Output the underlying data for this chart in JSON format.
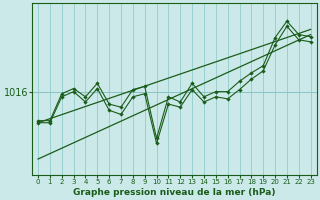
{
  "background_color": "#cce9e9",
  "plot_bg_color": "#cce9e9",
  "line_color": "#1a5c1a",
  "grid_color": "#88c4c4",
  "xlabel": "Graphe pression niveau de la mer (hPa)",
  "ylabel_tick": "1016",
  "x_ticks": [
    0,
    1,
    2,
    3,
    4,
    5,
    6,
    7,
    8,
    9,
    10,
    11,
    12,
    13,
    14,
    15,
    16,
    17,
    18,
    19,
    20,
    21,
    22,
    23
  ],
  "xlim": [
    -0.5,
    23.5
  ],
  "ylim_min": 1008.0,
  "ylim_max": 1024.5,
  "y_ref": 1016,
  "series1": [
    1013.2,
    1013.2,
    1015.8,
    1016.3,
    1015.5,
    1016.8,
    1014.8,
    1014.5,
    1016.2,
    1016.5,
    1011.5,
    1015.5,
    1015.0,
    1016.8,
    1015.5,
    1016.0,
    1016.0,
    1017.0,
    1017.8,
    1018.5,
    1021.2,
    1022.8,
    1021.5,
    1021.3
  ],
  "series2": [
    1013.0,
    1013.0,
    1015.5,
    1016.0,
    1015.0,
    1016.3,
    1014.2,
    1013.8,
    1015.5,
    1015.8,
    1011.0,
    1014.8,
    1014.5,
    1016.2,
    1015.0,
    1015.5,
    1015.3,
    1016.2,
    1017.2,
    1018.0,
    1020.5,
    1022.3,
    1021.0,
    1020.8
  ],
  "trend1_x": [
    0,
    23
  ],
  "trend1_y": [
    1013.0,
    1022.0
  ],
  "trend2_x": [
    0,
    23
  ],
  "trend2_y": [
    1009.5,
    1021.5
  ]
}
